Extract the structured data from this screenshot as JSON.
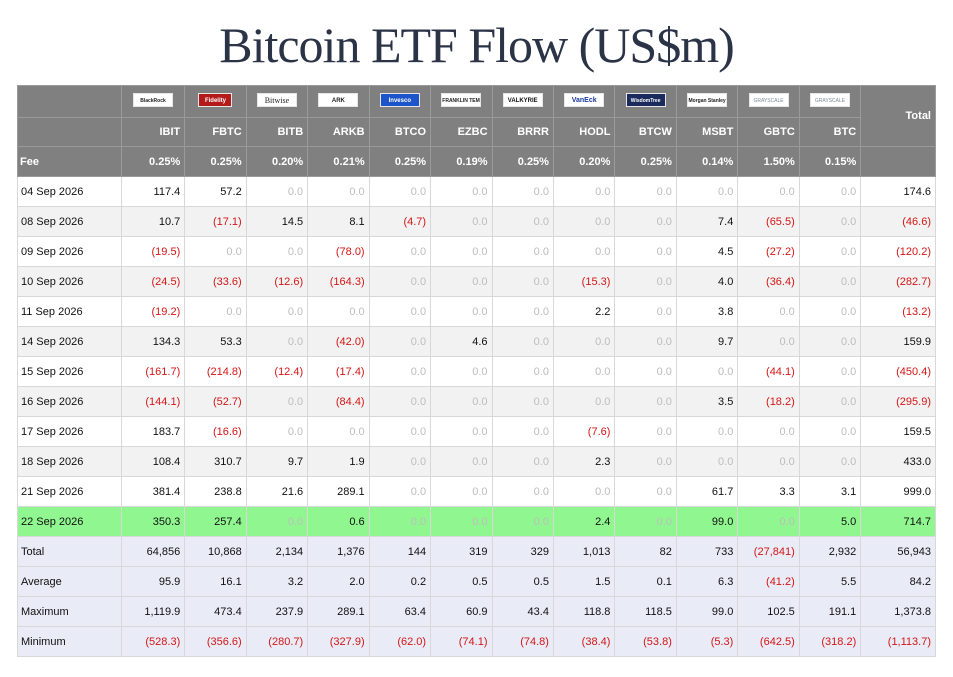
{
  "title": "Bitcoin ETF Flow (US$m)",
  "chart_data": {
    "type": "table",
    "title": "Bitcoin ETF Flow (US$m)",
    "funds": [
      {
        "logo": "BlackRock",
        "logo_icon": "blackrock-logo-icon",
        "ticker": "IBIT",
        "fee": "0.25%"
      },
      {
        "logo": "Fidelity",
        "logo_icon": "fidelity-logo-icon",
        "ticker": "FBTC",
        "fee": "0.25%"
      },
      {
        "logo": "Bitwise",
        "logo_icon": "bitwise-logo-icon",
        "ticker": "BITB",
        "fee": "0.20%"
      },
      {
        "logo": "ARK",
        "logo_icon": "ark-logo-icon",
        "ticker": "ARKB",
        "fee": "0.21%"
      },
      {
        "logo": "Invesco",
        "logo_icon": "invesco-logo-icon",
        "ticker": "BTCO",
        "fee": "0.25%"
      },
      {
        "logo": "FRANKLIN TEMPLETON",
        "logo_icon": "franklin-templeton-logo-icon",
        "ticker": "EZBC",
        "fee": "0.19%"
      },
      {
        "logo": "VALKYRIE",
        "logo_icon": "valkyrie-logo-icon",
        "ticker": "BRRR",
        "fee": "0.25%"
      },
      {
        "logo": "VanEck",
        "logo_icon": "vaneck-logo-icon",
        "ticker": "HODL",
        "fee": "0.20%"
      },
      {
        "logo": "WisdomTree",
        "logo_icon": "wisdomtree-logo-icon",
        "ticker": "BTCW",
        "fee": "0.25%"
      },
      {
        "logo": "Morgan Stanley",
        "logo_icon": "morgan-stanley-logo-icon",
        "ticker": "MSBT",
        "fee": "0.14%"
      },
      {
        "logo": "GRAYSCALE",
        "logo_icon": "grayscale-logo-icon",
        "ticker": "GBTC",
        "fee": "1.50%"
      },
      {
        "logo": "GRAYSCALE",
        "logo_icon": "grayscale-logo-icon",
        "ticker": "BTC",
        "fee": "0.15%"
      }
    ],
    "total_label": "Total",
    "fee_label": "Fee",
    "rows": [
      {
        "date": "04 Sep 2026",
        "values": [
          "117.4",
          "57.2",
          "0.0",
          "0.0",
          "0.0",
          "0.0",
          "0.0",
          "0.0",
          "0.0",
          "0.0",
          "0.0",
          "0.0"
        ],
        "total": "174.6"
      },
      {
        "date": "08 Sep 2026",
        "values": [
          "10.7",
          "(17.1)",
          "14.5",
          "8.1",
          "(4.7)",
          "0.0",
          "0.0",
          "0.0",
          "0.0",
          "7.4",
          "(65.5)",
          "0.0"
        ],
        "total": "(46.6)"
      },
      {
        "date": "09 Sep 2026",
        "values": [
          "(19.5)",
          "0.0",
          "0.0",
          "(78.0)",
          "0.0",
          "0.0",
          "0.0",
          "0.0",
          "0.0",
          "4.5",
          "(27.2)",
          "0.0"
        ],
        "total": "(120.2)"
      },
      {
        "date": "10 Sep 2026",
        "values": [
          "(24.5)",
          "(33.6)",
          "(12.6)",
          "(164.3)",
          "0.0",
          "0.0",
          "0.0",
          "(15.3)",
          "0.0",
          "4.0",
          "(36.4)",
          "0.0"
        ],
        "total": "(282.7)"
      },
      {
        "date": "11 Sep 2026",
        "values": [
          "(19.2)",
          "0.0",
          "0.0",
          "0.0",
          "0.0",
          "0.0",
          "0.0",
          "2.2",
          "0.0",
          "3.8",
          "0.0",
          "0.0"
        ],
        "total": "(13.2)"
      },
      {
        "date": "14 Sep 2026",
        "values": [
          "134.3",
          "53.3",
          "0.0",
          "(42.0)",
          "0.0",
          "4.6",
          "0.0",
          "0.0",
          "0.0",
          "9.7",
          "0.0",
          "0.0"
        ],
        "total": "159.9"
      },
      {
        "date": "15 Sep 2026",
        "values": [
          "(161.7)",
          "(214.8)",
          "(12.4)",
          "(17.4)",
          "0.0",
          "0.0",
          "0.0",
          "0.0",
          "0.0",
          "0.0",
          "(44.1)",
          "0.0"
        ],
        "total": "(450.4)"
      },
      {
        "date": "16 Sep 2026",
        "values": [
          "(144.1)",
          "(52.7)",
          "0.0",
          "(84.4)",
          "0.0",
          "0.0",
          "0.0",
          "0.0",
          "0.0",
          "3.5",
          "(18.2)",
          "0.0"
        ],
        "total": "(295.9)"
      },
      {
        "date": "17 Sep 2026",
        "values": [
          "183.7",
          "(16.6)",
          "0.0",
          "0.0",
          "0.0",
          "0.0",
          "0.0",
          "(7.6)",
          "0.0",
          "0.0",
          "0.0",
          "0.0"
        ],
        "total": "159.5"
      },
      {
        "date": "18 Sep 2026",
        "values": [
          "108.4",
          "310.7",
          "9.7",
          "1.9",
          "0.0",
          "0.0",
          "0.0",
          "2.3",
          "0.0",
          "0.0",
          "0.0",
          "0.0"
        ],
        "total": "433.0"
      },
      {
        "date": "21 Sep 2026",
        "values": [
          "381.4",
          "238.8",
          "21.6",
          "289.1",
          "0.0",
          "0.0",
          "0.0",
          "0.0",
          "0.0",
          "61.7",
          "3.3",
          "3.1"
        ],
        "total": "999.0"
      },
      {
        "date": "22 Sep 2026",
        "values": [
          "350.3",
          "257.4",
          "0.0",
          "0.6",
          "0.0",
          "0.0",
          "0.0",
          "2.4",
          "0.0",
          "99.0",
          "0.0",
          "5.0"
        ],
        "total": "714.7",
        "highlight": true
      }
    ],
    "summary": [
      {
        "label": "Total",
        "values": [
          "64,856",
          "10,868",
          "2,134",
          "1,376",
          "144",
          "319",
          "329",
          "1,013",
          "82",
          "733",
          "(27,841)",
          "2,932"
        ],
        "total": "56,943"
      },
      {
        "label": "Average",
        "values": [
          "95.9",
          "16.1",
          "3.2",
          "2.0",
          "0.2",
          "0.5",
          "0.5",
          "1.5",
          "0.1",
          "6.3",
          "(41.2)",
          "5.5"
        ],
        "total": "84.2"
      },
      {
        "label": "Maximum",
        "values": [
          "1,119.9",
          "473.4",
          "237.9",
          "289.1",
          "63.4",
          "60.9",
          "43.4",
          "118.8",
          "118.5",
          "99.0",
          "102.5",
          "191.1"
        ],
        "total": "1,373.8"
      },
      {
        "label": "Minimum",
        "values": [
          "(528.3)",
          "(356.6)",
          "(280.7)",
          "(327.9)",
          "(62.0)",
          "(74.1)",
          "(74.8)",
          "(38.4)",
          "(53.8)",
          "(5.3)",
          "(642.5)",
          "(318.2)"
        ],
        "total": "(1,113.7)"
      }
    ],
    "colors": {
      "header_bg": "#808080",
      "negative": "#d41616",
      "zero": "#bdbdbd",
      "row_alt": "#f2f2f2",
      "highlight": "#90f790",
      "summary_bg": "#e9ebf6",
      "title": "#2b3346"
    }
  }
}
